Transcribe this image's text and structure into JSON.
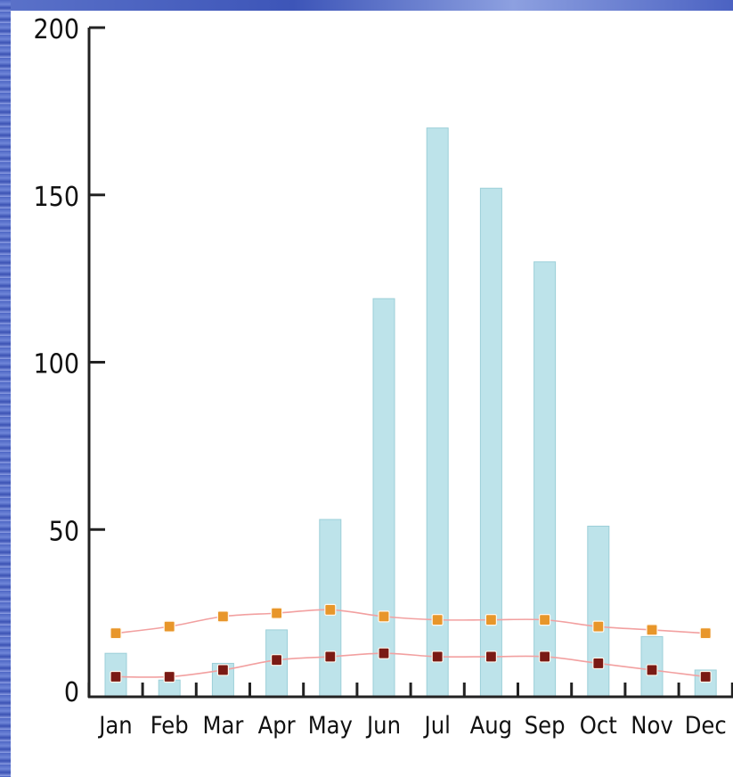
{
  "chart_data": {
    "type": "bar",
    "title": "",
    "xlabel": "",
    "ylabel": "",
    "categories": [
      "Jan",
      "Feb",
      "Mar",
      "Apr",
      "May",
      "Jun",
      "Jul",
      "Aug",
      "Sep",
      "Oct",
      "Nov",
      "Dec"
    ],
    "ylim": [
      0,
      200
    ],
    "yticks": [
      "0",
      "50",
      "100",
      "150",
      "200"
    ],
    "grid": false,
    "legend": "none",
    "series": [
      {
        "type": "bar",
        "color": "#bde3ea",
        "values": [
          13,
          5,
          10,
          20,
          53,
          119,
          170,
          152,
          130,
          51,
          18,
          8
        ]
      },
      {
        "type": "line",
        "color": "#e8962a",
        "values": [
          19,
          21,
          24,
          25,
          26,
          24,
          23,
          23,
          23,
          21,
          20,
          19
        ]
      },
      {
        "type": "line",
        "color": "#7a1a14",
        "values": [
          6,
          6,
          8,
          11,
          12,
          13,
          12,
          12,
          12,
          10,
          8,
          6
        ]
      }
    ]
  }
}
